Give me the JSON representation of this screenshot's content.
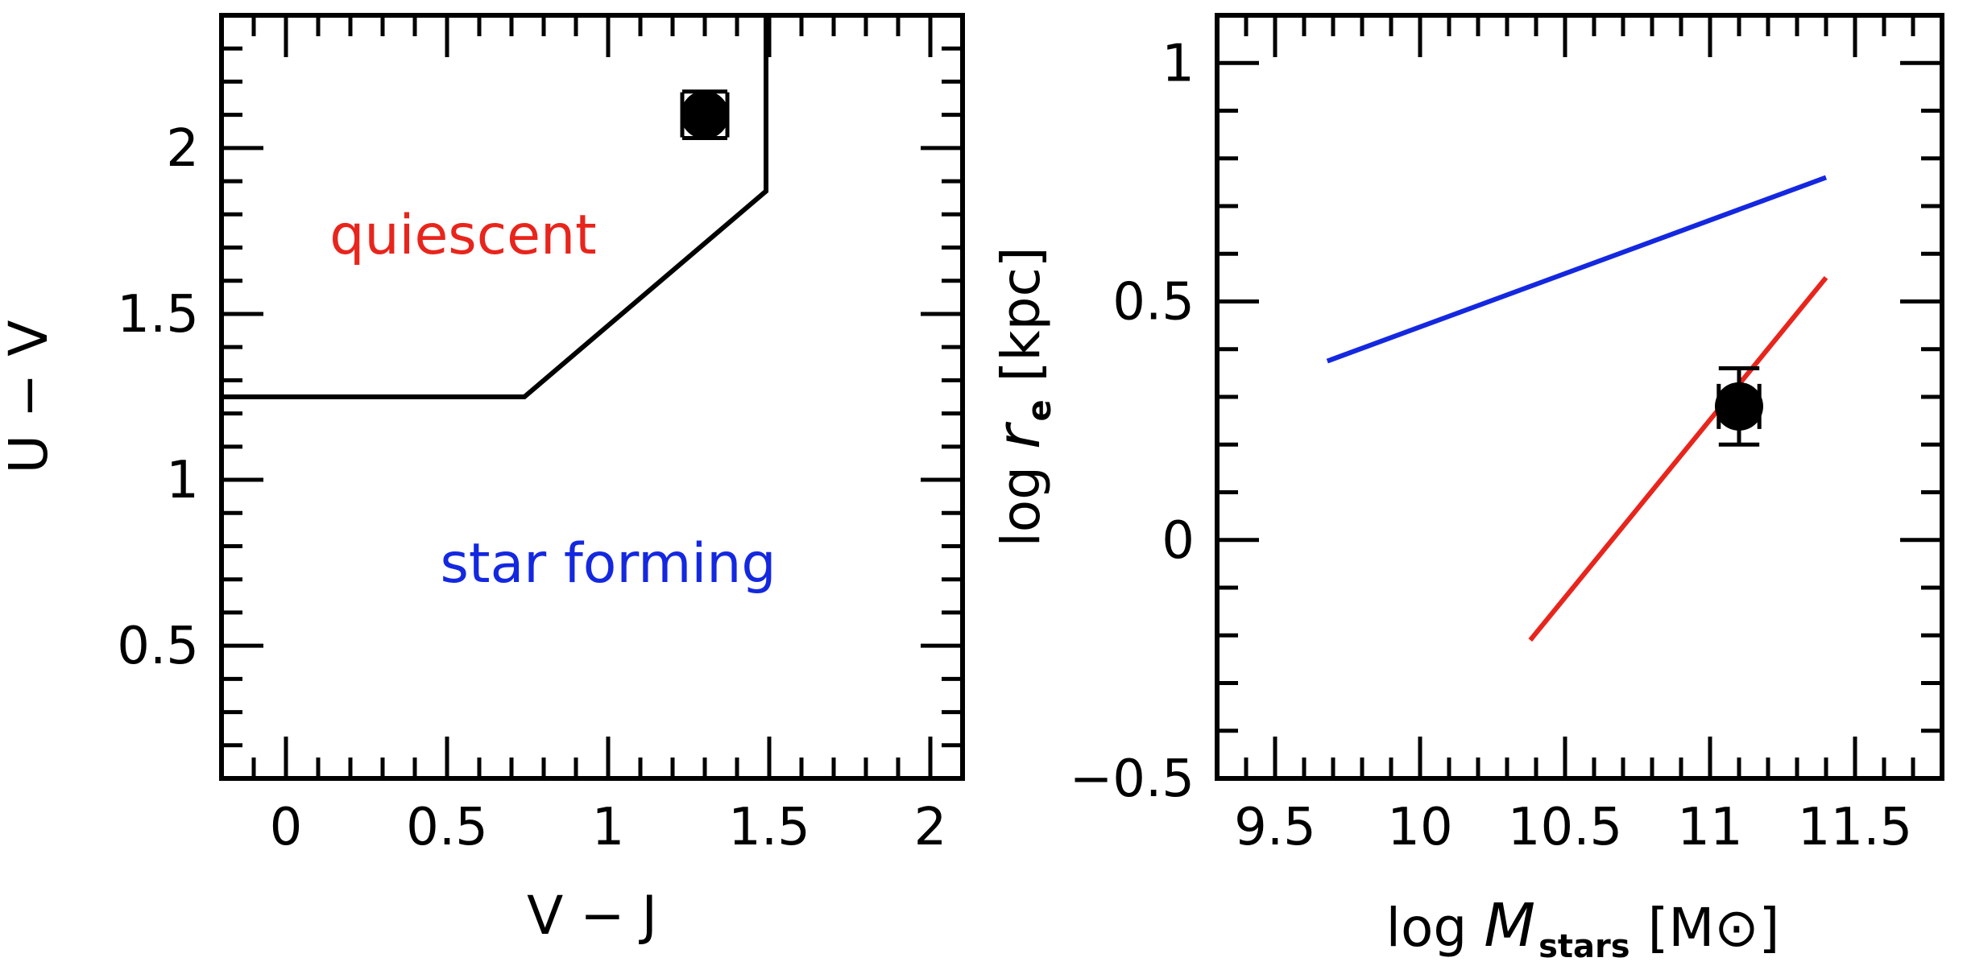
{
  "chart_data": [
    {
      "type": "scatter",
      "title": "",
      "xlabel": "V − J",
      "ylabel": "U − V",
      "xlim": [
        -0.2,
        2.1
      ],
      "ylim": [
        0.1,
        2.4
      ],
      "x_ticks": [
        0,
        0.5,
        1,
        1.5,
        2
      ],
      "x_tick_labels": [
        "0",
        "0.5",
        "1",
        "1.5",
        "2"
      ],
      "y_ticks": [
        0.5,
        1,
        1.5,
        2
      ],
      "y_tick_labels": [
        "0.5",
        "1",
        "1.5",
        "2"
      ],
      "grid": false,
      "boundary_line": {
        "name": "quiescent-selection-boundary",
        "color": "#000000",
        "x": [
          -0.2,
          0.74,
          1.49,
          1.49
        ],
        "y": [
          1.25,
          1.25,
          1.87,
          2.4
        ]
      },
      "points": [
        {
          "x": 1.3,
          "y": 2.1,
          "xerr": 0.07,
          "yerr": 0.07,
          "color": "#000000"
        }
      ],
      "annotations": [
        {
          "text": "quiescent",
          "x": 0.55,
          "y": 1.74,
          "color": "#e8251c"
        },
        {
          "text": "star forming",
          "x": 1.0,
          "y": 0.75,
          "color": "#1428e0"
        }
      ]
    },
    {
      "type": "line",
      "title": "",
      "xlabel_prefix": "log ",
      "xlabel_var": "M",
      "xlabel_sub": "stars",
      "xlabel_unit": "[M⊙]",
      "ylabel_prefix": "log ",
      "ylabel_var": "r",
      "ylabel_sub": "e",
      "ylabel_unit": "[kpc]",
      "xlim": [
        9.3,
        11.8
      ],
      "ylim": [
        -0.5,
        1.1
      ],
      "x_ticks": [
        9.5,
        10,
        10.5,
        11,
        11.5
      ],
      "x_tick_labels": [
        "9.5",
        "10",
        "10.5",
        "11",
        "11.5"
      ],
      "y_ticks": [
        -0.5,
        0,
        0.5,
        1
      ],
      "y_tick_labels": [
        "−0.5",
        "0",
        "0.5",
        "1"
      ],
      "grid": false,
      "series": [
        {
          "name": "star-forming-relation",
          "color": "#1428e0",
          "x": [
            9.68,
            11.4
          ],
          "y": [
            0.375,
            0.76
          ]
        },
        {
          "name": "quiescent-relation",
          "color": "#e8251c",
          "x": [
            10.38,
            11.4
          ],
          "y": [
            -0.21,
            0.55
          ]
        }
      ],
      "points": [
        {
          "x": 11.1,
          "y": 0.28,
          "xerr": 0.07,
          "yerr": 0.08,
          "color": "#000000"
        }
      ]
    }
  ]
}
